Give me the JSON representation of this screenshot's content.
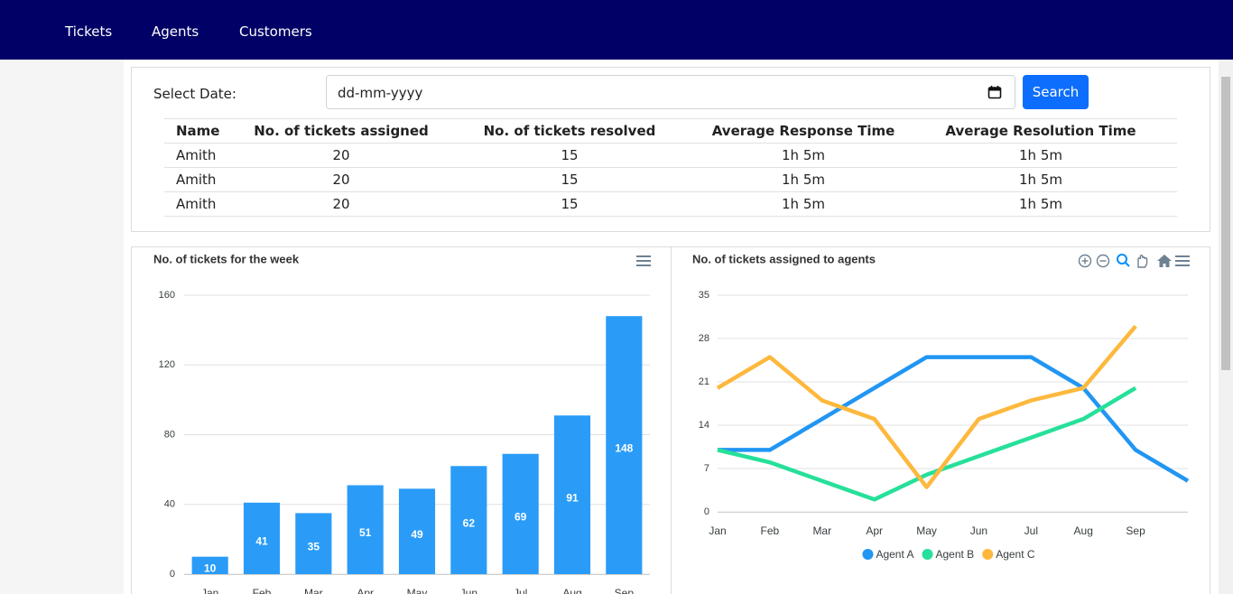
{
  "nav": {
    "links": [
      "Tickets",
      "Agents",
      "Customers"
    ]
  },
  "filter": {
    "label": "Select Date:",
    "placeholder": "dd-mm-yyyy",
    "button": "Search"
  },
  "table": {
    "columns": [
      "Name",
      "No. of tickets assigned",
      "No. of tickets resolved",
      "Average Response Time",
      "Average Resolution Time"
    ],
    "rows": [
      [
        "Amith",
        20,
        15,
        "1h 5m",
        "1h 5m"
      ],
      [
        "Amith",
        20,
        15,
        "1h 5m",
        "1h 5m"
      ],
      [
        "Amith",
        20,
        15,
        "1h 5m",
        "1h 5m"
      ]
    ]
  },
  "chart_data": [
    {
      "type": "bar",
      "title": "No. of tickets for the week",
      "categories": [
        "Jan",
        "Feb",
        "Mar",
        "Apr",
        "May",
        "Jun",
        "Jul",
        "Aug",
        "Sep"
      ],
      "values": [
        10,
        41,
        35,
        51,
        49,
        62,
        69,
        91,
        148
      ],
      "color": "#2a9cf8",
      "ylim": [
        0,
        160
      ],
      "yticks": [
        0,
        40,
        80,
        120,
        160
      ],
      "grid": true
    },
    {
      "type": "line",
      "title": "No. of tickets assigned to agents",
      "categories": [
        "Jan",
        "Feb",
        "Mar",
        "Apr",
        "May",
        "Jun",
        "Jul",
        "Aug",
        "Sep",
        null
      ],
      "series": [
        {
          "name": "Agent A",
          "color": "#2196f3",
          "values": [
            10,
            10,
            15,
            20,
            25,
            25,
            25,
            20,
            10,
            5
          ]
        },
        {
          "name": "Agent B",
          "color": "#26e09a",
          "values": [
            10,
            8,
            5,
            2,
            6,
            9,
            12,
            15,
            20,
            null
          ]
        },
        {
          "name": "Agent C",
          "color": "#fdb83d",
          "values": [
            20,
            25,
            18,
            15,
            4,
            15,
            18,
            20,
            30,
            null
          ]
        }
      ],
      "ylim": [
        0,
        35
      ],
      "yticks": [
        0,
        7,
        14,
        21,
        28,
        35
      ],
      "grid": true,
      "legend": "bottom"
    }
  ]
}
